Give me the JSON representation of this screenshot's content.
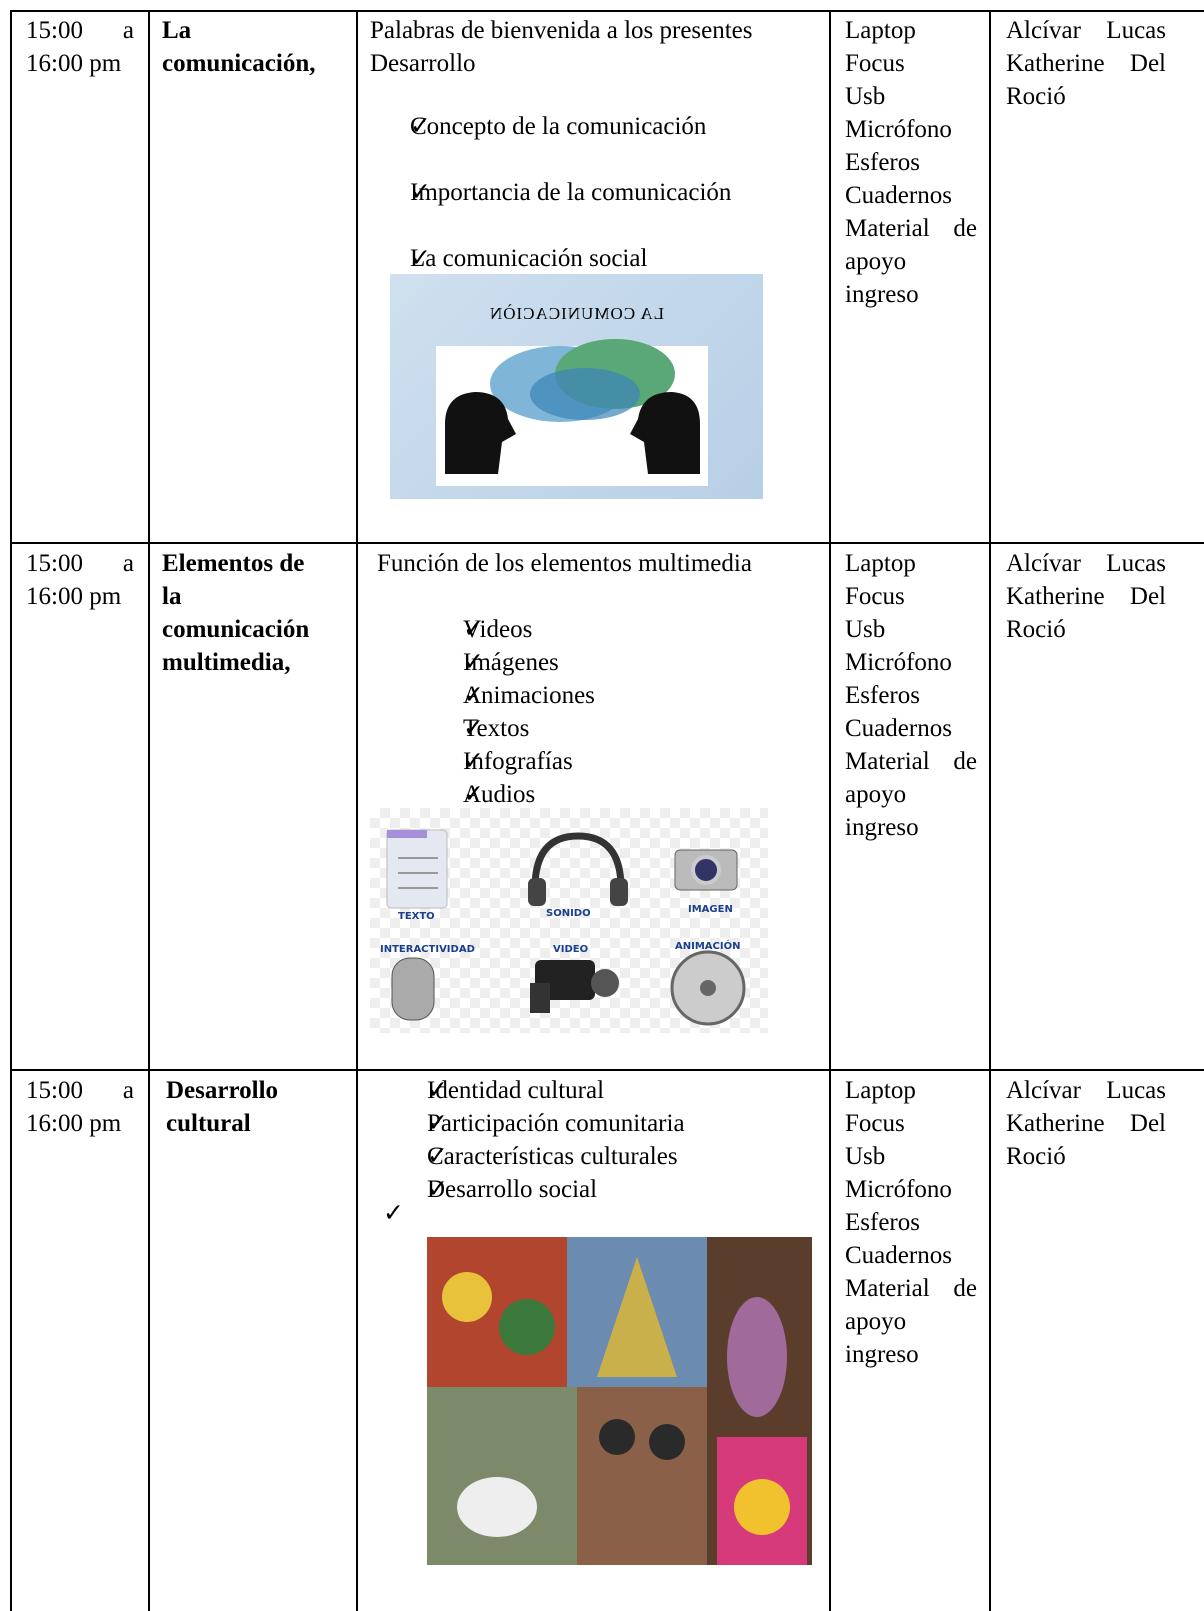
{
  "table": {
    "rows": [
      {
        "time": [
          "15:00 a",
          "16:00 pm"
        ],
        "topic": [
          "La",
          "comunicación,"
        ],
        "activities": {
          "intro": [
            "Palabras de bienvenida a los presentes",
            "Desarrollo"
          ],
          "checks": [
            "Concepto de la comunicación",
            "Importancia de la comunicación",
            "La comunicación social"
          ]
        },
        "image": {
          "caption": "LA COMUNICACIÒN"
        },
        "resources": [
          "Laptop",
          "Focus",
          "Usb",
          "Micrófono",
          "Esferos",
          "Cuadernos",
          "Material de",
          "apoyo",
          "ingreso"
        ],
        "responsible": [
          "Alcívar Lucas",
          "Katherine Del",
          "Roció"
        ]
      },
      {
        "time": [
          "15:00 a",
          "16:00 pm"
        ],
        "topic": [
          "Elementos de",
          "la",
          "comunicación",
          "multimedia,"
        ],
        "activities": {
          "intro": [
            "Función de los elementos multimedia"
          ],
          "checks": [
            "Videos",
            "Imágenes",
            "Animaciones",
            "Textos",
            "Infografías",
            "Audios"
          ]
        },
        "image": {
          "labels": [
            "TEXTO",
            "SONIDO",
            "IMAGEN",
            "INTERACTIVIDAD",
            "VIDEO",
            "ANIMACIÓN"
          ]
        },
        "resources": [
          "Laptop",
          "Focus",
          "Usb",
          "Micrófono",
          "Esferos",
          "Cuadernos",
          "Material de",
          "apoyo",
          "ingreso"
        ],
        "responsible": [
          "Alcívar Lucas",
          "Katherine Del",
          "Roció"
        ]
      },
      {
        "time": [
          "15:00 a",
          "16:00 pm"
        ],
        "topic": [
          "Desarrollo",
          "cultural"
        ],
        "activities": {
          "intro": [],
          "checks": [
            "Identidad cultural",
            "Participación comunitaria",
            "Características culturales",
            "Desarrollo social"
          ]
        },
        "resources": [
          "Laptop",
          "Focus",
          "Usb",
          "Micrófono",
          "Esferos",
          "Cuadernos",
          "Material de",
          "apoyo",
          "ingreso"
        ],
        "responsible": [
          "Alcívar Lucas",
          "Katherine Del",
          "Roció"
        ]
      }
    ]
  }
}
